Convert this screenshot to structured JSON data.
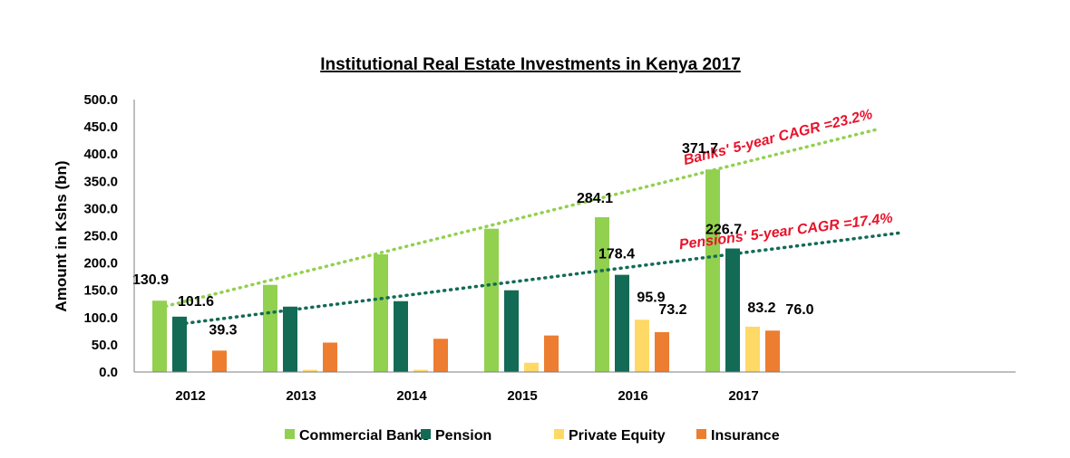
{
  "chart_data": {
    "type": "bar",
    "title": "Institutional Real Estate Investments in Kenya 2017",
    "xlabel": "",
    "ylabel": "Amount in Kshs (bn)",
    "ylim": [
      0,
      500
    ],
    "yticks": [
      "0.0",
      "50.0",
      "100.0",
      "150.0",
      "200.0",
      "250.0",
      "300.0",
      "350.0",
      "400.0",
      "450.0",
      "500.0"
    ],
    "categories": [
      "2012",
      "2013",
      "2014",
      "2015",
      "2016",
      "2017"
    ],
    "series": [
      {
        "name": "Commercial Banks",
        "color": "#92d050",
        "values": [
          130.9,
          160,
          216,
          263,
          284.1,
          371.7
        ]
      },
      {
        "name": "Pension",
        "color": "#136b55",
        "values": [
          101.6,
          120,
          130,
          150,
          178.4,
          226.7
        ]
      },
      {
        "name": "Private Equity",
        "color": "#ffd966",
        "values": [
          0,
          4,
          4,
          17,
          95.9,
          83.2
        ]
      },
      {
        "name": "Insurance",
        "color": "#ed7d31",
        "values": [
          39.3,
          54,
          61,
          67,
          73.2,
          76.0
        ]
      }
    ],
    "data_labels": [
      {
        "series": 0,
        "index": 0,
        "text": "130.9"
      },
      {
        "series": 1,
        "index": 0,
        "text": "101.6"
      },
      {
        "series": 3,
        "index": 0,
        "text": "39.3"
      },
      {
        "series": 0,
        "index": 4,
        "text": "284.1"
      },
      {
        "series": 1,
        "index": 4,
        "text": "178.4"
      },
      {
        "series": 2,
        "index": 4,
        "text": "95.9"
      },
      {
        "series": 3,
        "index": 4,
        "text": "73.2"
      },
      {
        "series": 0,
        "index": 5,
        "text": "371.7"
      },
      {
        "series": 1,
        "index": 5,
        "text": "226.7"
      },
      {
        "series": 2,
        "index": 5,
        "text": "83.2"
      },
      {
        "series": 3,
        "index": 5,
        "text": "76.0"
      }
    ],
    "trendlines": [
      {
        "series": 0,
        "label": "Banks' 5-year CAGR =23.2%",
        "color": "#92d050",
        "start": 118,
        "end": 446
      },
      {
        "series": 1,
        "label": "Pensions' 5-year CAGR =17.4%",
        "color": "#136b55",
        "start": 88,
        "end": 255
      }
    ],
    "grid": false,
    "legend_position": "bottom"
  }
}
